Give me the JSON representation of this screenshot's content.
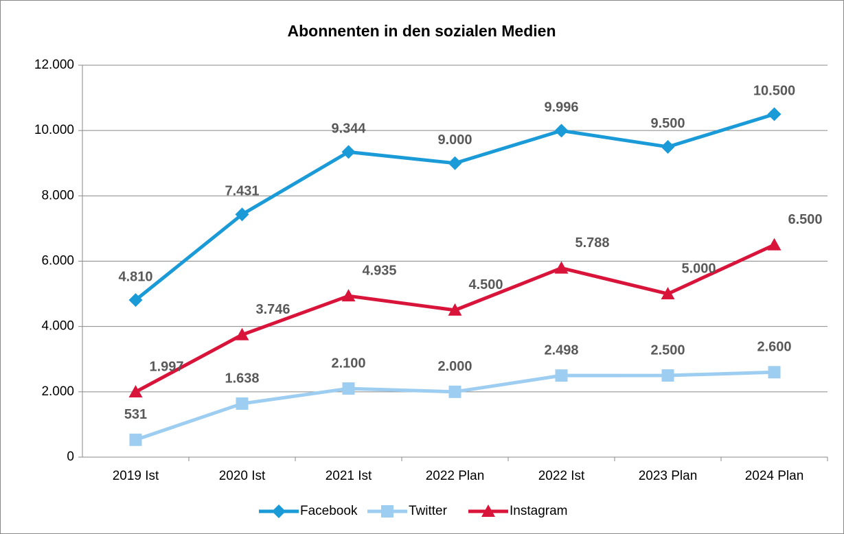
{
  "chart_data": {
    "type": "line",
    "title": "Abonnenten in den sozialen Medien",
    "categories": [
      "2019 Ist",
      "2020 Ist",
      "2021 Ist",
      "2022 Plan",
      "2022 Ist",
      "2023 Plan",
      "2024 Plan"
    ],
    "series": [
      {
        "name": "Facebook",
        "color": "#1a9ad6",
        "marker": "diamond",
        "values": [
          4810,
          7431,
          9344,
          9000,
          9996,
          9500,
          10500
        ],
        "value_labels": [
          "4.810",
          "7.431",
          "9.344",
          "9.000",
          "9.996",
          "9.500",
          "10.500"
        ]
      },
      {
        "name": "Twitter",
        "color": "#9dcdf0",
        "marker": "square",
        "values": [
          531,
          1638,
          2100,
          2000,
          2498,
          2500,
          2600
        ],
        "value_labels": [
          "531",
          "1.638",
          "2.100",
          "2.000",
          "2.498",
          "2.500",
          "2.600"
        ]
      },
      {
        "name": "Instagram",
        "color": "#d9143a",
        "marker": "triangle",
        "values": [
          1997,
          3746,
          4935,
          4500,
          5788,
          5000,
          6500
        ],
        "value_labels": [
          "1.997",
          "3.746",
          "4.935",
          "4.500",
          "5.788",
          "5.000",
          "6.500"
        ]
      }
    ],
    "ylim": [
      0,
      12000
    ],
    "yticks": [
      0,
      {
        "value": 2000,
        "label": "2.000"
      },
      {
        "value": 4000,
        "label": "4.000"
      },
      {
        "value": 6000,
        "label": "6.000"
      },
      {
        "value": 8000,
        "label": "8.000"
      },
      {
        "value": 10000,
        "label": "10.000"
      },
      {
        "value": 12000,
        "label": "12.000"
      }
    ],
    "grid": true,
    "legend": "bottom"
  }
}
